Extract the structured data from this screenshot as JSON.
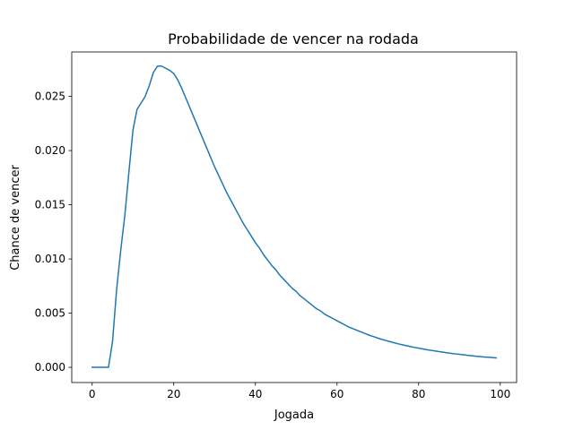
{
  "chart_data": {
    "type": "line",
    "title": "Probabilidade de vencer na rodada",
    "xlabel": "Jogada",
    "ylabel": "Chance de vencer",
    "xlim": [
      -5,
      104
    ],
    "ylim": [
      -0.0014,
      0.0291
    ],
    "xticks": [
      0,
      20,
      40,
      60,
      80,
      100
    ],
    "xtick_labels": [
      "0",
      "20",
      "40",
      "60",
      "80",
      "100"
    ],
    "yticks": [
      0,
      0.005,
      0.01,
      0.015,
      0.02,
      0.025
    ],
    "ytick_labels": [
      "0.000",
      "0.005",
      "0.010",
      "0.015",
      "0.020",
      "0.025"
    ],
    "grid": false,
    "legend": "none",
    "series": [
      {
        "color": "#1f77b4",
        "x": [
          0,
          1,
          2,
          3,
          4,
          5,
          6,
          7,
          8,
          9,
          10,
          11,
          12,
          13,
          14,
          15,
          16,
          17,
          18,
          19,
          20,
          21,
          22,
          23,
          24,
          25,
          26,
          27,
          28,
          29,
          30,
          31,
          32,
          33,
          34,
          35,
          36,
          37,
          38,
          39,
          40,
          41,
          42,
          43,
          44,
          45,
          46,
          47,
          48,
          49,
          50,
          51,
          52,
          53,
          54,
          55,
          56,
          57,
          58,
          59,
          60,
          61,
          62,
          63,
          64,
          65,
          66,
          67,
          68,
          69,
          70,
          71,
          72,
          73,
          74,
          75,
          76,
          77,
          78,
          79,
          80,
          81,
          82,
          83,
          84,
          85,
          86,
          87,
          88,
          89,
          90,
          91,
          92,
          93,
          94,
          95,
          96,
          97,
          98,
          99
        ],
        "y": [
          0,
          0,
          0,
          0,
          0,
          0.0024,
          0.0072,
          0.0108,
          0.014,
          0.018,
          0.0219,
          0.0238,
          0.0244,
          0.025,
          0.026,
          0.0272,
          0.0278,
          0.0278,
          0.0276,
          0.0274,
          0.0271,
          0.0265,
          0.0257,
          0.0248,
          0.0239,
          0.023,
          0.0221,
          0.0212,
          0.0203,
          0.0194,
          0.0185,
          0.0177,
          0.0169,
          0.0161,
          0.0154,
          0.0147,
          0.014,
          0.0133,
          0.0127,
          0.0121,
          0.0115,
          0.011,
          0.0104,
          0.0099,
          0.0094,
          0.009,
          0.0085,
          0.0081,
          0.0077,
          0.0073,
          0.007,
          0.0066,
          0.0063,
          0.006,
          0.0057,
          0.0054,
          0.0052,
          0.0049,
          0.0047,
          0.0045,
          0.0043,
          0.0041,
          0.0039,
          0.0037,
          0.00355,
          0.0034,
          0.00325,
          0.0031,
          0.00295,
          0.00283,
          0.0027,
          0.00258,
          0.00247,
          0.00237,
          0.00227,
          0.00217,
          0.00208,
          0.002,
          0.00192,
          0.00184,
          0.00177,
          0.0017,
          0.00163,
          0.00157,
          0.00151,
          0.00145,
          0.0014,
          0.00134,
          0.00129,
          0.00124,
          0.0012,
          0.00116,
          0.00111,
          0.00107,
          0.00103,
          0.001,
          0.00096,
          0.00093,
          0.0009,
          0.00087
        ]
      }
    ]
  }
}
